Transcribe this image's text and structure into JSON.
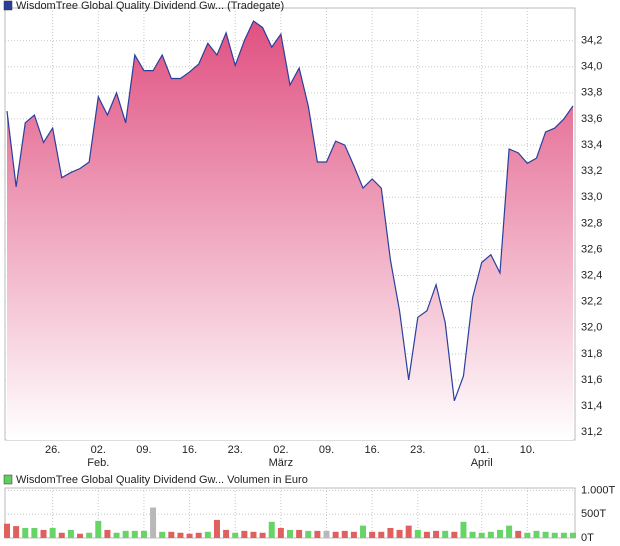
{
  "chart_data": [
    {
      "type": "area",
      "title": "WisdomTree Global Quality Dividend Gw... (Tradegate)",
      "legend_color": "#2a3f9c",
      "line_color": "#2a3f9c",
      "fill_top": "#e05080",
      "fill_bottom": "#ffffff",
      "grid": true,
      "categories": [
        null,
        null,
        null,
        null,
        null,
        "26.",
        null,
        null,
        null,
        null,
        "02.",
        null,
        null,
        null,
        null,
        "09.",
        null,
        null,
        null,
        null,
        "16.",
        null,
        null,
        null,
        null,
        "23.",
        null,
        null,
        null,
        null,
        "02.",
        null,
        null,
        null,
        null,
        "09.",
        null,
        null,
        null,
        null,
        "16.",
        null,
        null,
        null,
        null,
        "23.",
        null,
        null,
        null,
        null,
        null,
        null,
        "01.",
        null,
        null,
        null,
        null,
        "10.",
        null,
        null,
        null,
        null,
        null
      ],
      "month_labels": [
        null,
        null,
        null,
        null,
        null,
        null,
        null,
        null,
        null,
        null,
        "Feb.",
        null,
        null,
        null,
        null,
        null,
        null,
        null,
        null,
        null,
        null,
        null,
        null,
        null,
        null,
        null,
        null,
        null,
        null,
        null,
        "März",
        null,
        null,
        null,
        null,
        null,
        null,
        null,
        null,
        null,
        null,
        null,
        null,
        null,
        null,
        null,
        null,
        null,
        null,
        null,
        null,
        null,
        "April",
        null,
        null,
        null,
        null,
        null,
        null,
        null,
        null,
        null,
        null
      ],
      "values": [
        33.66,
        33.08,
        33.57,
        33.63,
        33.42,
        33.53,
        33.15,
        33.19,
        33.22,
        33.27,
        33.77,
        33.63,
        33.8,
        33.57,
        34.09,
        33.97,
        33.97,
        34.09,
        33.91,
        33.91,
        33.96,
        34.02,
        34.18,
        34.09,
        34.26,
        34.01,
        34.2,
        34.35,
        34.3,
        34.15,
        34.25,
        33.86,
        33.99,
        33.7,
        33.27,
        33.27,
        33.43,
        33.4,
        33.24,
        33.07,
        33.14,
        33.07,
        32.52,
        32.13,
        31.6,
        32.08,
        32.13,
        32.33,
        32.04,
        31.44,
        31.63,
        32.23,
        32.5,
        32.56,
        32.42,
        33.37,
        33.34,
        33.26,
        33.3,
        33.5,
        33.53,
        33.6,
        33.7
      ],
      "ylim": [
        31.14,
        34.45
      ],
      "yticks": [
        {
          "value": 31.2,
          "label": "31,2"
        },
        {
          "value": 31.4,
          "label": "31,4"
        },
        {
          "value": 31.6,
          "label": "31,6"
        },
        {
          "value": 31.8,
          "label": "31,8"
        },
        {
          "value": 32.0,
          "label": "32,0"
        },
        {
          "value": 32.2,
          "label": "32,2"
        },
        {
          "value": 32.4,
          "label": "32,4"
        },
        {
          "value": 32.6,
          "label": "32,6"
        },
        {
          "value": 32.8,
          "label": "32,8"
        },
        {
          "value": 33.0,
          "label": "33,0"
        },
        {
          "value": 33.2,
          "label": "33,2"
        },
        {
          "value": 33.4,
          "label": "33,4"
        },
        {
          "value": 33.6,
          "label": "33,6"
        },
        {
          "value": 33.8,
          "label": "33,8"
        },
        {
          "value": 34.0,
          "label": "34,0"
        },
        {
          "value": 34.2,
          "label": "34,2"
        }
      ]
    },
    {
      "type": "bar",
      "title": "WisdomTree Global Quality Dividend Gw... Volumen in Euro",
      "legend_color": "#5ecf5e",
      "grid": true,
      "values": [
        300000,
        250000,
        210000,
        210000,
        170000,
        210000,
        110000,
        170000,
        90000,
        110000,
        360000,
        170000,
        110000,
        150000,
        150000,
        150000,
        640000,
        130000,
        130000,
        110000,
        90000,
        110000,
        130000,
        380000,
        170000,
        110000,
        150000,
        130000,
        110000,
        340000,
        210000,
        170000,
        170000,
        150000,
        150000,
        150000,
        130000,
        150000,
        130000,
        260000,
        130000,
        130000,
        210000,
        170000,
        260000,
        170000,
        130000,
        150000,
        150000,
        130000,
        340000,
        130000,
        110000,
        130000,
        170000,
        260000,
        150000,
        110000,
        150000,
        130000,
        110000,
        110000,
        110000
      ],
      "colors": [
        "#e06060",
        "#e06060",
        "#66d466",
        "#66d466",
        "#e06060",
        "#66d466",
        "#e06060",
        "#66d466",
        "#e06060",
        "#66d466",
        "#66d466",
        "#e06060",
        "#66d466",
        "#66d466",
        "#66d466",
        "#66d466",
        "#b8b8b8",
        "#66d466",
        "#e06060",
        "#e06060",
        "#e06060",
        "#e06060",
        "#66d466",
        "#e06060",
        "#e06060",
        "#66d466",
        "#e06060",
        "#e06060",
        "#e06060",
        "#66d466",
        "#e06060",
        "#66d466",
        "#e06060",
        "#66d466",
        "#e06060",
        "#b8b8b8",
        "#e06060",
        "#e06060",
        "#e06060",
        "#66d466",
        "#e06060",
        "#e06060",
        "#e06060",
        "#e06060",
        "#e06060",
        "#66d466",
        "#e06060",
        "#e06060",
        "#66d466",
        "#e06060",
        "#66d466",
        "#66d466",
        "#66d466",
        "#66d466",
        "#66d466",
        "#66d466",
        "#e06060",
        "#66d466",
        "#66d466",
        "#66d466",
        "#66d466",
        "#66d466",
        "#66d466"
      ],
      "ylim": [
        0,
        1050000
      ],
      "yticks": [
        {
          "value": 0,
          "label": "0T"
        },
        {
          "value": 500000,
          "label": "500T"
        },
        {
          "value": 1000000,
          "label": "1.000T"
        }
      ]
    }
  ]
}
